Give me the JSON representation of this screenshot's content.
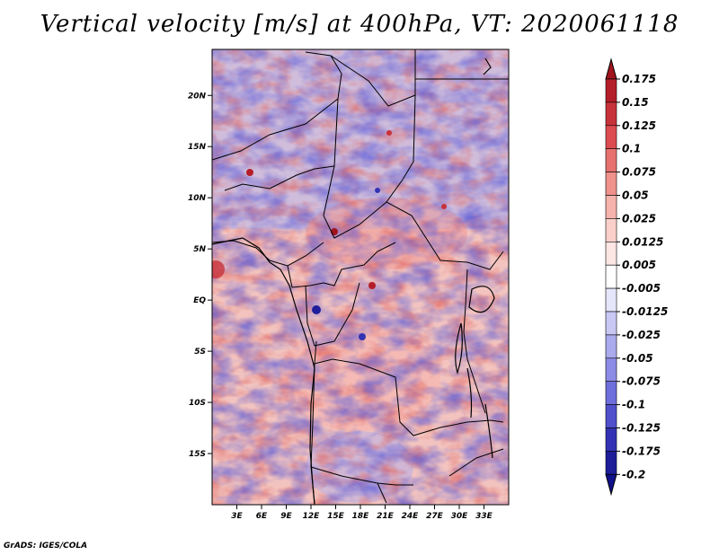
{
  "title": "Vertical velocity [m/s] at 400hPa, VT: 2020061118",
  "footer": "GrADS: IGES/COLA",
  "chart_data": {
    "type": "heatmap",
    "title": "Vertical velocity [m/s] at 400hPa, VT: 2020061118",
    "variable": "Vertical velocity",
    "units": "m/s",
    "level": "400hPa",
    "valid_time": "2020061118",
    "xlabel": "",
    "ylabel": "",
    "xlim": [
      0,
      36
    ],
    "ylim": [
      -20,
      24.5
    ],
    "x_ticks": [
      {
        "value": 3,
        "label": "3E"
      },
      {
        "value": 6,
        "label": "6E"
      },
      {
        "value": 9,
        "label": "9E"
      },
      {
        "value": 12,
        "label": "12E"
      },
      {
        "value": 15,
        "label": "15E"
      },
      {
        "value": 18,
        "label": "18E"
      },
      {
        "value": 21,
        "label": "21E"
      },
      {
        "value": 24,
        "label": "24E"
      },
      {
        "value": 27,
        "label": "27E"
      },
      {
        "value": 30,
        "label": "30E"
      },
      {
        "value": 33,
        "label": "33E"
      }
    ],
    "y_ticks": [
      {
        "value": 20,
        "label": "20N"
      },
      {
        "value": 15,
        "label": "15N"
      },
      {
        "value": 10,
        "label": "10N"
      },
      {
        "value": 5,
        "label": "5N"
      },
      {
        "value": 0,
        "label": "EQ"
      },
      {
        "value": -5,
        "label": "5S"
      },
      {
        "value": -10,
        "label": "10S"
      },
      {
        "value": -15,
        "label": "15S"
      }
    ],
    "legend": {
      "position": "right",
      "labels": [
        "0.175",
        "0.15",
        "0.125",
        "0.1",
        "0.075",
        "0.05",
        "0.025",
        "0.0125",
        "0.005",
        "-0.005",
        "-0.0125",
        "-0.025",
        "-0.05",
        "-0.075",
        "-0.1",
        "-0.125",
        "-0.175",
        "-0.2"
      ],
      "colors": [
        "#a0141e",
        "#b41e28",
        "#c8323a",
        "#dc4c50",
        "#e6716e",
        "#f0918c",
        "#f6b2ac",
        "#fbd0cb",
        "#fde6e3",
        "#ffffff",
        "#e6e6fb",
        "#c8c8f5",
        "#aaaaee",
        "#8c8ce6",
        "#6e6edc",
        "#5050cd",
        "#3232b4",
        "#1e1e9b",
        "#10108a"
      ]
    }
  }
}
